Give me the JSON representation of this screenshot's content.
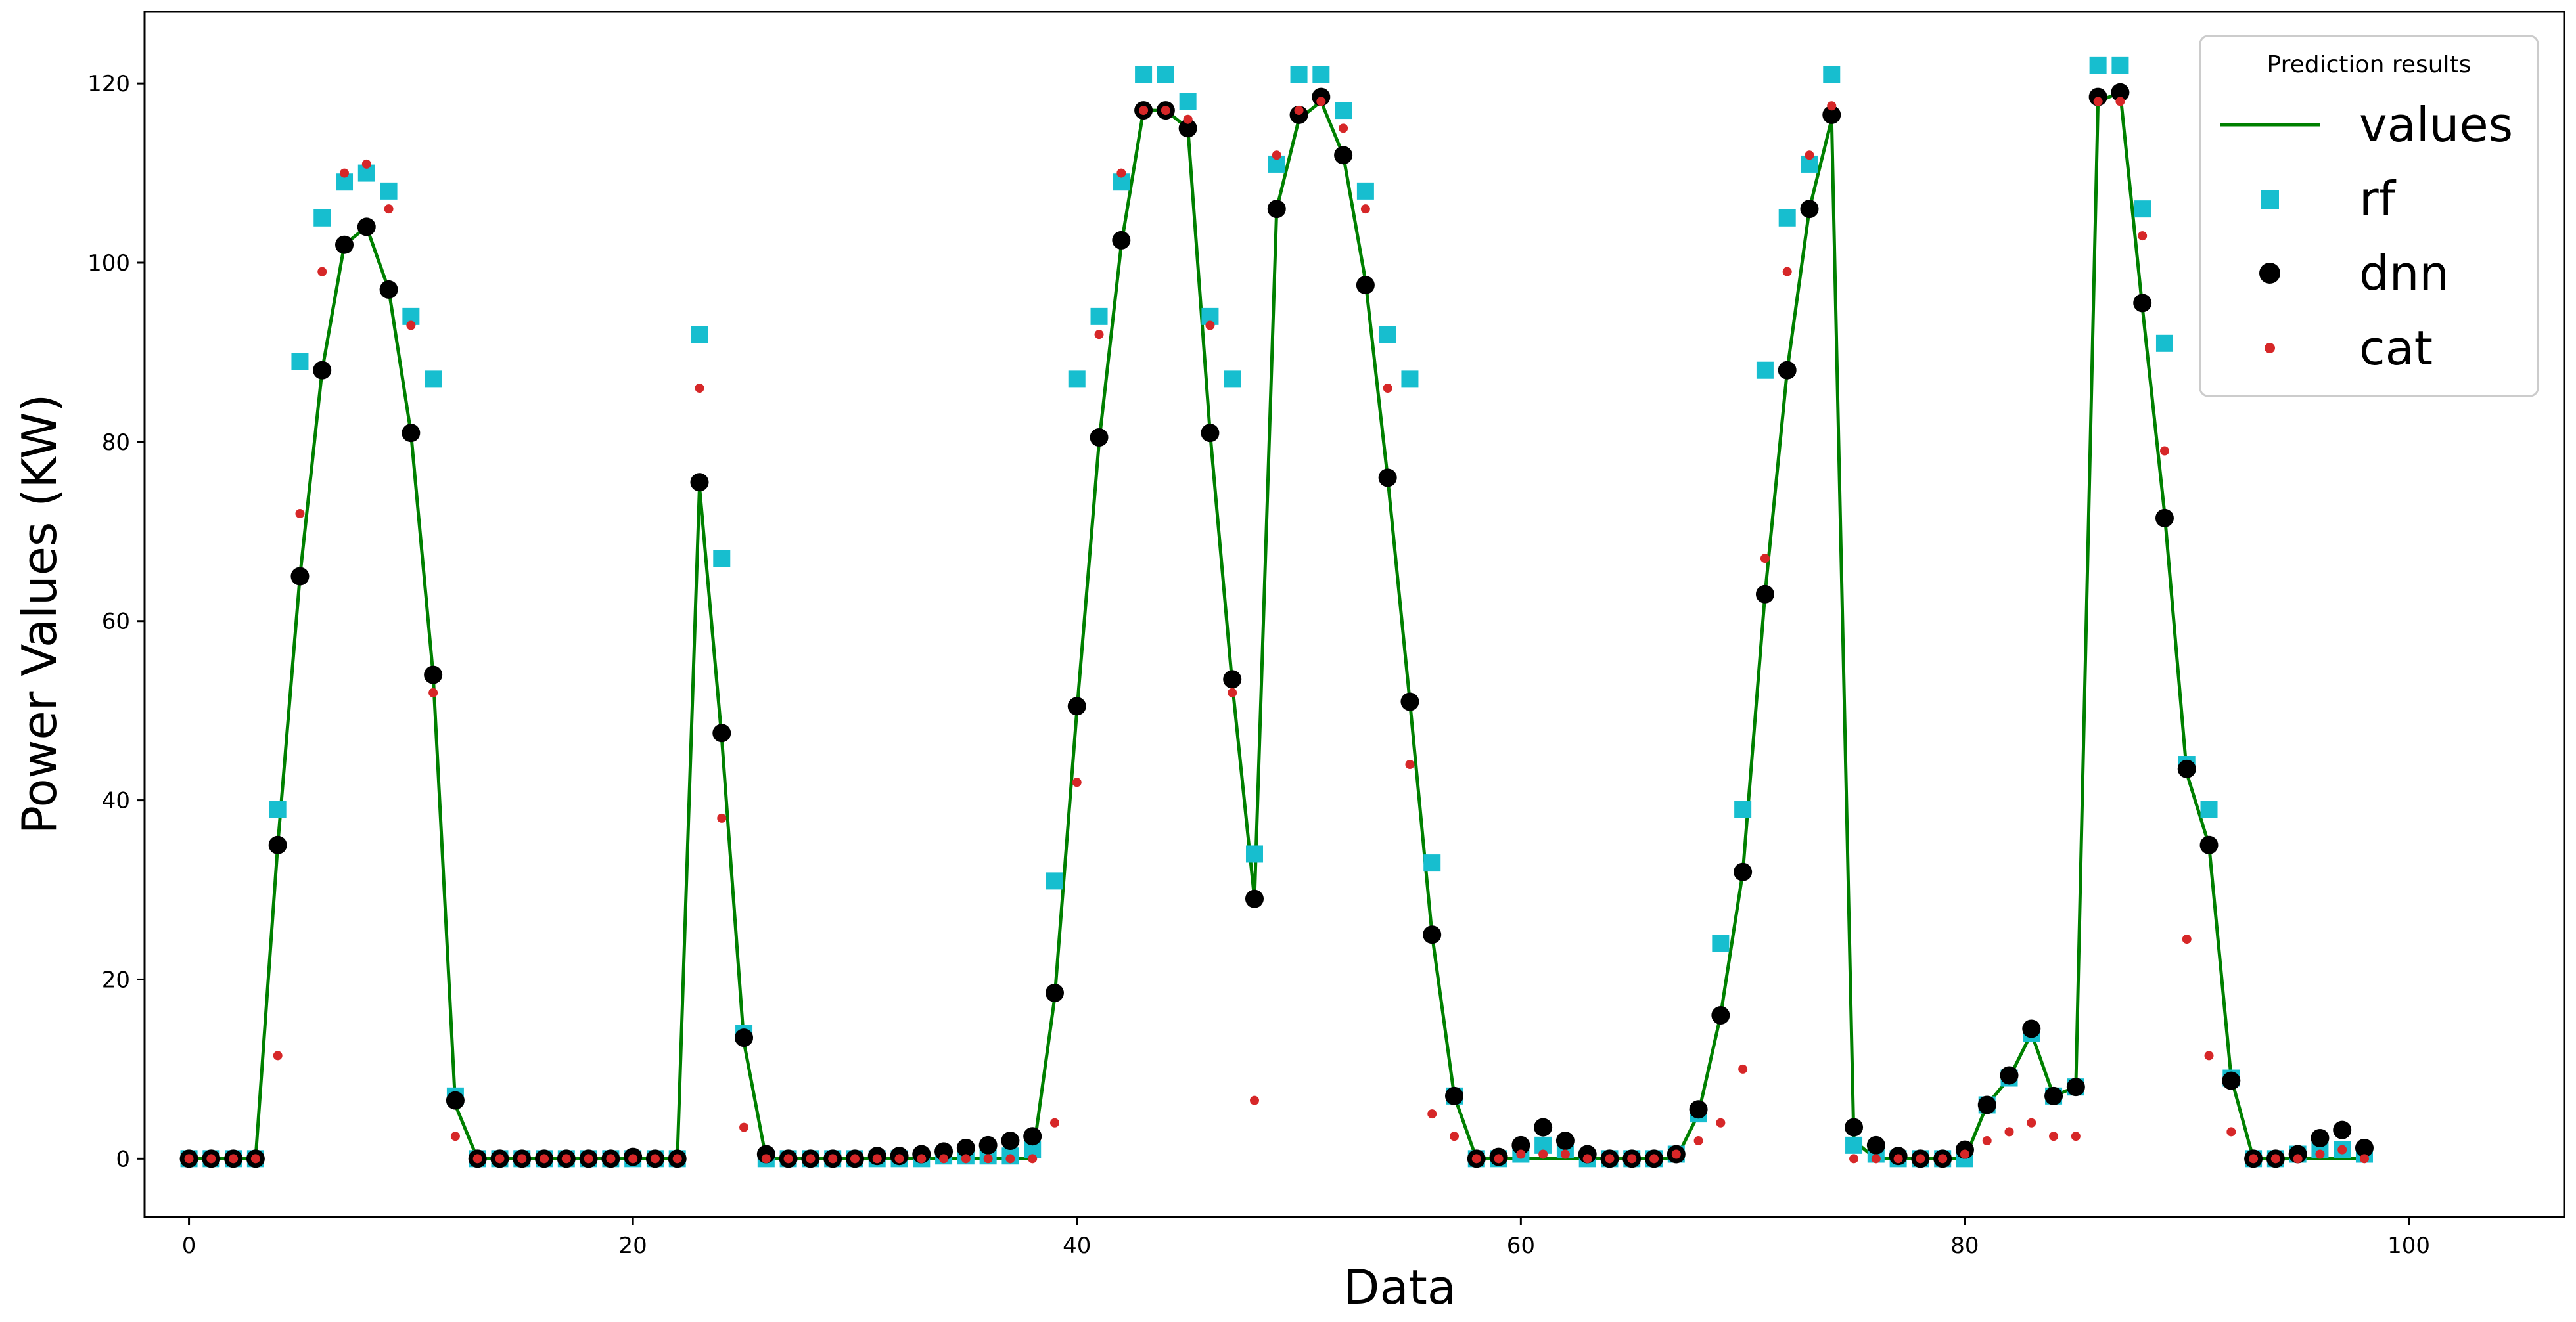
{
  "chart_data": {
    "type": "line",
    "xlabel": "Data",
    "ylabel": "Power Values (KW)",
    "xlim": [
      -2,
      107
    ],
    "ylim": [
      -6.5,
      128
    ],
    "x_ticks": [
      0,
      20,
      40,
      60,
      80,
      100
    ],
    "y_ticks": [
      0,
      20,
      40,
      60,
      80,
      100,
      120
    ],
    "grid": false,
    "legend": {
      "title": "Prediction results",
      "placement": "top-right",
      "entries": [
        "values",
        "rf",
        "dnn",
        "cat"
      ]
    },
    "series": [
      {
        "name": "values",
        "style": "line",
        "color": "#008000",
        "values": [
          0,
          0,
          0,
          0,
          35,
          65,
          88,
          102,
          104,
          97,
          81,
          54,
          6,
          0,
          0,
          0,
          0,
          0,
          0,
          0,
          0,
          0,
          0,
          75,
          47,
          13,
          0,
          0,
          0,
          0,
          0,
          0,
          0,
          0,
          0,
          0,
          0,
          0,
          0,
          18,
          50,
          80,
          102,
          117,
          117,
          115,
          81,
          53,
          29,
          106,
          116,
          118,
          112,
          98,
          76,
          51,
          25,
          7,
          0,
          0,
          0,
          0,
          0,
          0,
          0,
          0,
          0,
          0,
          5,
          16,
          32,
          63,
          88,
          106,
          116,
          2,
          0,
          0,
          0,
          0,
          0,
          6,
          9,
          14,
          7,
          8,
          118,
          119,
          95,
          72,
          43,
          35,
          9,
          0,
          0,
          0,
          0,
          0,
          0
        ]
      },
      {
        "name": "rf",
        "style": "square",
        "color": "#17becf",
        "values": [
          0,
          0,
          0,
          0,
          39,
          89,
          105,
          109,
          110,
          108,
          94,
          87,
          7,
          0,
          0,
          0,
          0,
          0,
          0,
          0,
          0,
          0,
          0,
          92,
          67,
          14,
          0,
          0,
          0,
          0,
          0,
          0,
          0,
          0,
          0.3,
          0.3,
          0.3,
          0.3,
          1,
          31,
          87,
          94,
          109,
          121,
          121,
          118,
          94,
          87,
          34,
          111,
          121,
          121,
          117,
          108,
          92,
          87,
          33,
          7,
          0,
          0,
          0.5,
          1.5,
          1,
          0,
          0,
          0,
          0,
          0.5,
          5,
          24,
          39,
          88,
          105,
          111,
          121,
          1.5,
          0.5,
          0,
          0,
          0,
          0,
          6,
          9,
          14,
          7,
          8,
          122,
          122,
          106,
          91,
          44,
          39,
          9,
          0,
          0,
          0.5,
          1,
          1,
          0.5
        ]
      },
      {
        "name": "dnn",
        "style": "circle",
        "color": "#000000",
        "values": [
          0,
          0,
          0,
          0,
          35,
          65,
          88,
          102,
          104,
          97,
          81,
          54,
          6.5,
          0,
          0,
          0,
          0,
          0,
          0,
          0,
          0.2,
          0,
          0,
          75.5,
          47.5,
          13.5,
          0.5,
          0,
          0,
          0,
          0,
          0.3,
          0.3,
          0.5,
          0.8,
          1.2,
          1.5,
          2,
          2.5,
          18.5,
          50.5,
          80.5,
          102.5,
          117,
          117,
          115,
          81,
          53.5,
          29,
          106,
          116.5,
          118.5,
          112,
          97.5,
          76,
          51,
          25,
          7,
          0,
          0.2,
          1.5,
          3.5,
          2,
          0.5,
          0,
          0,
          0,
          0.5,
          5.5,
          16,
          32,
          63,
          88,
          106,
          116.5,
          3.5,
          1.5,
          0.3,
          0,
          0,
          1,
          6,
          9.3,
          14.5,
          7,
          8,
          118.5,
          119,
          95.5,
          71.5,
          43.5,
          35,
          8.7,
          0,
          0,
          0.5,
          2.3,
          3.2,
          1.2
        ]
      },
      {
        "name": "cat",
        "style": "dot",
        "color": "#d62728",
        "values": [
          0,
          0,
          0,
          0,
          11.5,
          72,
          99,
          110,
          111,
          106,
          93,
          52,
          2.5,
          0,
          0,
          0,
          0,
          0,
          0,
          0,
          0,
          0,
          0,
          86,
          38,
          3.5,
          0,
          0,
          0,
          0,
          0,
          0,
          0,
          0,
          0,
          0,
          0,
          0,
          0,
          4,
          42,
          92,
          110,
          117,
          117,
          116,
          93,
          52,
          6.5,
          112,
          117,
          118,
          115,
          106,
          86,
          44,
          5,
          2.5,
          0,
          0,
          0.5,
          0.5,
          0.5,
          0,
          0,
          0,
          0,
          0.5,
          2,
          4,
          10,
          67,
          99,
          112,
          117.5,
          0,
          0,
          0,
          0,
          0,
          0.5,
          2,
          3,
          4,
          2.5,
          2.5,
          118,
          118,
          103,
          79,
          24.5,
          11.5,
          3,
          0,
          0,
          0,
          0.5,
          1,
          0
        ]
      }
    ]
  }
}
